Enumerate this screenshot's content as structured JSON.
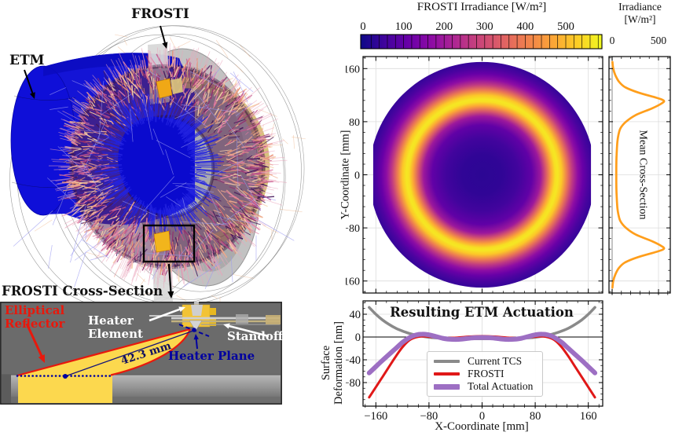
{
  "assembly_view": {
    "frosti_label": "FROSTI",
    "etm_label": "ETM",
    "colors": {
      "etm_blue": "#1414d6",
      "shell_gray": "#bfbfbf",
      "ring_tan": "#d8c17c",
      "cut_face_gray": "#d8d8d8",
      "reflector_yellow": "#f2b51c",
      "speckle_palette": [
        "#c2538c",
        "#e07ba3",
        "#f2a98c",
        "#93306f",
        "#45175a",
        "#f7cfa5",
        "#e8906e"
      ],
      "halo_pink": "#eaa4bb",
      "ray_blue": "#2323e0",
      "stray_blue": "#9a9af2",
      "hatch_orange": "#edb083"
    }
  },
  "cross_section_view": {
    "title": "FROSTI Cross-Section",
    "reflector_label": "Elliptical Reflector",
    "heater_element_label": "Heater Element",
    "standoff_label": "Standoff",
    "heater_plane_label": "Heater Plane",
    "distance_label": "42.3 mm",
    "colors": {
      "background_gray": "#6b6b6b",
      "beam_yellow": "#fcd84e",
      "reflector_red": "#e8180c",
      "annotation_navy": "#0000a0",
      "barrel_light": "#b8b8b8",
      "barrel_dark": "#6e6e6e"
    }
  },
  "chart_data": [
    {
      "id": "frosti_irradiance_map",
      "type": "heatmap",
      "title": "FROSTI Irradiance [W/m²]",
      "ylabel": "Y-Coordinate [mm]",
      "colormap": "plasma",
      "colorbar": {
        "ticks": [
          0,
          100,
          200,
          300,
          400,
          500
        ],
        "vmin": 0,
        "vmax": 590,
        "minor_step": 20
      },
      "xlim": [
        -180,
        180
      ],
      "ylim": [
        -178,
        178
      ],
      "xticks": [
        -160,
        -80,
        0,
        80,
        160
      ],
      "yticks": [
        160,
        80,
        0,
        -80,
        -160
      ],
      "disk_radius_mm": 170,
      "flat_x_mm": 164,
      "radial_profile": {
        "r_mm": [
          0,
          30,
          55,
          75,
          88,
          96,
          104,
          110,
          114,
          120,
          128,
          136,
          144,
          152,
          160,
          166,
          170
        ],
        "irradiance": [
          35,
          40,
          60,
          105,
          200,
          330,
          470,
          555,
          565,
          520,
          390,
          265,
          175,
          115,
          75,
          55,
          48
        ]
      }
    },
    {
      "id": "mean_cross_section",
      "type": "line",
      "title": "Irradiance",
      "title_units": "[W/m²]",
      "side_label": "Mean Cross-Section",
      "line_color": "#ff9e1b",
      "xlim": [
        -34,
        627
      ],
      "ylim": [
        -178,
        178
      ],
      "xticks": [
        0,
        500
      ],
      "yticks": [
        160,
        80,
        0,
        -80,
        -160
      ],
      "y_mm": [
        -170,
        -160,
        -150,
        -140,
        -132,
        -124,
        -116,
        -112,
        -108,
        -100,
        -90,
        -80,
        -70,
        -60,
        -50,
        -40,
        -30,
        -20,
        -10,
        0,
        10,
        20,
        30,
        40,
        50,
        60,
        70,
        80,
        90,
        100,
        108,
        112,
        116,
        124,
        132,
        140,
        150,
        160,
        170
      ],
      "irradiance": [
        3,
        12,
        35,
        75,
        140,
        280,
        480,
        555,
        540,
        430,
        255,
        150,
        90,
        68,
        57,
        52,
        48,
        46,
        45,
        45,
        45,
        46,
        48,
        52,
        57,
        68,
        90,
        150,
        255,
        430,
        540,
        555,
        480,
        280,
        140,
        75,
        35,
        12,
        3
      ]
    },
    {
      "id": "etm_actuation",
      "type": "line",
      "title": "Resulting ETM Actuation",
      "xlabel": "X-Coordinate [mm]",
      "ylabel_lines": [
        "Surface",
        "Deformation [nm]"
      ],
      "xlim": [
        -180,
        180
      ],
      "ylim": [
        -122,
        63
      ],
      "xticks": [
        -160,
        -80,
        0,
        80,
        160
      ],
      "yticks": [
        40,
        0,
        -40,
        -80
      ],
      "x_mm": [
        -170,
        -160,
        -150,
        -140,
        -130,
        -120,
        -110,
        -100,
        -90,
        -80,
        -70,
        -60,
        -50,
        -40,
        -30,
        -20,
        -10,
        0,
        10,
        20,
        30,
        40,
        50,
        60,
        70,
        80,
        90,
        100,
        110,
        120,
        130,
        140,
        150,
        160,
        170
      ],
      "series": [
        {
          "name": "Current TCS",
          "color": "#8a8a8a",
          "width": 3.5,
          "values": [
            52,
            40,
            30,
            22,
            15.5,
            10.5,
            6.5,
            3.5,
            1.3,
            -0.5,
            -1.5,
            -2.2,
            -2.6,
            -2.8,
            -3,
            -3,
            -3,
            -3,
            -3,
            -3,
            -3,
            -2.8,
            -2.6,
            -2.2,
            -1.5,
            -0.5,
            1.3,
            3.5,
            6.5,
            10.5,
            15.5,
            22,
            30,
            40,
            52
          ]
        },
        {
          "name": "FROSTI",
          "color": "#e01818",
          "width": 3,
          "values": [
            -106,
            -88,
            -70,
            -52,
            -34,
            -18,
            -6,
            -0.5,
            1.2,
            0.6,
            -0.4,
            -1.3,
            -1.6,
            -1.2,
            -0.3,
            0.7,
            1.3,
            1.5,
            1.3,
            0.7,
            -0.3,
            -1.2,
            -1.6,
            -1.3,
            -0.4,
            0.6,
            1.2,
            -0.5,
            -6,
            -18,
            -34,
            -52,
            -70,
            -88,
            -106
          ]
        },
        {
          "name": "Total Actuation",
          "color": "#9d6fc3",
          "width": 6,
          "values": [
            -63,
            -52,
            -41,
            -30.5,
            -20,
            -9.5,
            -1.5,
            3.5,
            5,
            3.8,
            1,
            -2,
            -3.8,
            -4.3,
            -3.6,
            -2.2,
            -1.2,
            -0.8,
            -1.2,
            -2.2,
            -3.6,
            -4.3,
            -3.8,
            -2,
            1,
            3.8,
            5,
            3.5,
            -1.5,
            -9.5,
            -20,
            -30.5,
            -41,
            -52,
            -63
          ]
        }
      ]
    }
  ]
}
